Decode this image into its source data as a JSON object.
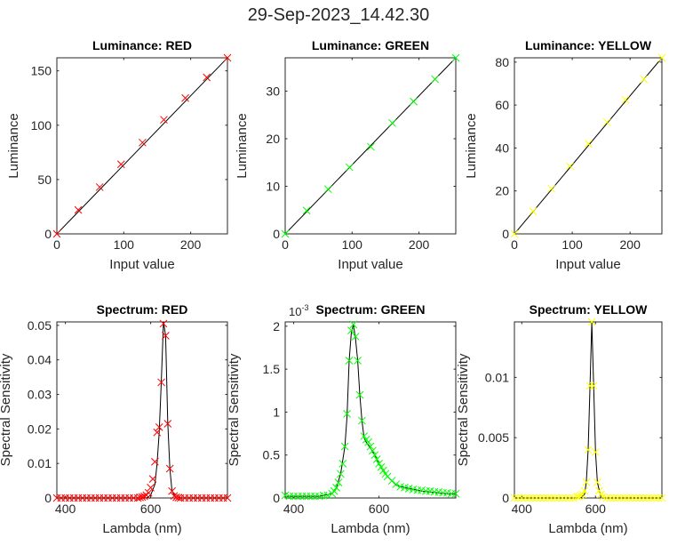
{
  "figure_title": "29-Sep-2023_14.42.30",
  "chart_data": [
    {
      "type": "line",
      "title": "Luminance: RED",
      "xlabel": "Input value",
      "ylabel": "Luminance",
      "xlim": [
        0,
        255
      ],
      "ylim": [
        0,
        162
      ],
      "xticks": [
        0,
        100,
        200
      ],
      "xtick_labels": [
        "0",
        "100",
        "200"
      ],
      "yticks": [
        0,
        50,
        100,
        150
      ],
      "ytick_labels": [
        "0",
        "50",
        "100",
        "150"
      ],
      "color": "#ff0000",
      "line": {
        "x": [
          0,
          255
        ],
        "y": [
          0,
          162
        ]
      },
      "markers": {
        "x": [
          0,
          32,
          64,
          96,
          128,
          160,
          192,
          224,
          255
        ],
        "y": [
          0,
          22,
          43,
          64,
          84,
          105,
          125,
          144,
          162
        ]
      }
    },
    {
      "type": "line",
      "title": "Luminance: GREEN",
      "xlabel": "Input value",
      "ylabel": "Luminance",
      "xlim": [
        0,
        255
      ],
      "ylim": [
        0,
        37
      ],
      "xticks": [
        0,
        100,
        200
      ],
      "xtick_labels": [
        "0",
        "100",
        "200"
      ],
      "yticks": [
        0,
        10,
        20,
        30
      ],
      "ytick_labels": [
        "0",
        "10",
        "20",
        "30"
      ],
      "color": "#00ff00",
      "line": {
        "x": [
          0,
          255
        ],
        "y": [
          0,
          37
        ]
      },
      "markers": {
        "x": [
          0,
          32,
          64,
          96,
          128,
          160,
          192,
          224,
          255
        ],
        "y": [
          0,
          4.9,
          9.4,
          14,
          18.3,
          23.3,
          27.8,
          32.5,
          37
        ]
      }
    },
    {
      "type": "line",
      "title": "Luminance: YELLOW",
      "xlabel": "Input value",
      "ylabel": "Luminance",
      "xlim": [
        0,
        255
      ],
      "ylim": [
        0,
        82
      ],
      "xticks": [
        0,
        100,
        200
      ],
      "xtick_labels": [
        "0",
        "100",
        "200"
      ],
      "yticks": [
        0,
        20,
        40,
        60,
        80
      ],
      "ytick_labels": [
        "0",
        "20",
        "40",
        "60",
        "80"
      ],
      "color": "#ffff00",
      "line": {
        "x": [
          0,
          255
        ],
        "y": [
          0,
          82
        ]
      },
      "markers": {
        "x": [
          0,
          32,
          64,
          96,
          128,
          160,
          192,
          224,
          255
        ],
        "y": [
          0,
          10.5,
          21,
          31.5,
          42,
          52,
          62.5,
          72,
          82
        ]
      }
    },
    {
      "type": "line",
      "title": "Spectrum: RED",
      "xlabel": "Lambda (nm)",
      "ylabel": "Spectral Sensitivity",
      "xlim": [
        380,
        780
      ],
      "ylim": [
        0,
        0.051
      ],
      "xticks": [
        400,
        600
      ],
      "xtick_labels": [
        "400",
        "600"
      ],
      "yticks": [
        0,
        0.01,
        0.02,
        0.03,
        0.04,
        0.05
      ],
      "ytick_labels": [
        "0",
        "0.01",
        "0.02",
        "0.03",
        "0.04",
        "0.05"
      ],
      "color": "#ff0000",
      "line": {
        "x": [
          380,
          590,
          600,
          610,
          615,
          620,
          625,
          630,
          635,
          640,
          645,
          650,
          660,
          780
        ],
        "y": [
          0,
          0,
          0.0008,
          0.004,
          0.01,
          0.019,
          0.034,
          0.051,
          0.047,
          0.022,
          0.0085,
          0.002,
          0,
          0
        ]
      },
      "markers": {
        "x": [
          380,
          390,
          400,
          410,
          420,
          430,
          440,
          450,
          460,
          470,
          480,
          490,
          500,
          510,
          520,
          530,
          540,
          550,
          560,
          570,
          575,
          580,
          585,
          590,
          595,
          600,
          605,
          610,
          615,
          620,
          625,
          630,
          635,
          640,
          645,
          650,
          655,
          660,
          665,
          670,
          680,
          690,
          700,
          710,
          720,
          730,
          740,
          750,
          760,
          770,
          780
        ],
        "y": [
          0,
          0,
          0,
          0,
          0,
          0,
          0,
          0,
          0,
          0,
          0,
          0,
          0,
          0,
          0,
          0,
          0,
          0,
          0,
          0,
          0.0002,
          0.0003,
          0.0005,
          0.0008,
          0.0015,
          0.003,
          0.0055,
          0.0105,
          0.019,
          0.0205,
          0.0335,
          0.0505,
          0.047,
          0.0215,
          0.0085,
          0.002,
          0.0006,
          0.0002,
          0.0001,
          0,
          0,
          0,
          0,
          0,
          0,
          0,
          0,
          0,
          0,
          0,
          0
        ]
      }
    },
    {
      "type": "line",
      "title": "Spectrum: GREEN",
      "xlabel": "Lambda (nm)",
      "ylabel": "Spectral Sensitivity",
      "exponent_label": "10^{-3}",
      "xlim": [
        380,
        780
      ],
      "ylim": [
        0,
        2.05
      ],
      "xticks": [
        400,
        600
      ],
      "xtick_labels": [
        "400",
        "600"
      ],
      "yticks": [
        0,
        0.5,
        1,
        1.5,
        2
      ],
      "ytick_labels": [
        "0",
        "0.5",
        "1",
        "1.5",
        "2"
      ],
      "color": "#00ff00",
      "line": {
        "x": [
          380,
          420,
          460,
          490,
          500,
          510,
          520,
          525,
          530,
          535,
          540,
          545,
          550,
          555,
          560,
          565,
          570,
          580,
          590,
          600,
          620,
          640,
          660,
          680,
          700,
          720,
          740,
          760,
          780
        ],
        "y": [
          0.02,
          0.02,
          0.02,
          0.05,
          0.12,
          0.28,
          0.6,
          0.95,
          1.6,
          1.92,
          2.02,
          1.85,
          1.6,
          1.2,
          0.9,
          0.7,
          0.65,
          0.58,
          0.5,
          0.4,
          0.25,
          0.15,
          0.12,
          0.1,
          0.08,
          0.07,
          0.06,
          0.05,
          0.05
        ]
      },
      "markers": {
        "x": [
          380,
          390,
          400,
          410,
          420,
          430,
          440,
          450,
          460,
          470,
          480,
          490,
          495,
          500,
          505,
          510,
          515,
          520,
          525,
          530,
          535,
          540,
          545,
          550,
          555,
          560,
          565,
          570,
          575,
          580,
          585,
          590,
          595,
          600,
          605,
          610,
          615,
          620,
          630,
          640,
          650,
          660,
          670,
          680,
          690,
          700,
          710,
          720,
          730,
          740,
          750,
          760,
          770,
          780
        ],
        "y": [
          0.03,
          0.02,
          0.02,
          0.02,
          0.02,
          0.02,
          0.02,
          0.02,
          0.02,
          0.03,
          0.03,
          0.05,
          0.08,
          0.12,
          0.18,
          0.28,
          0.4,
          0.6,
          0.98,
          1.6,
          1.95,
          2.02,
          1.88,
          1.6,
          1.2,
          0.9,
          0.72,
          0.68,
          0.65,
          0.6,
          0.55,
          0.5,
          0.45,
          0.4,
          0.36,
          0.32,
          0.28,
          0.25,
          0.2,
          0.16,
          0.13,
          0.12,
          0.11,
          0.1,
          0.09,
          0.09,
          0.08,
          0.08,
          0.07,
          0.07,
          0.06,
          0.06,
          0.05,
          0.05
        ]
      }
    },
    {
      "type": "line",
      "title": "Spectrum: YELLOW",
      "xlabel": "Lambda (nm)",
      "ylabel": "Spectral Sensitivity",
      "xlim": [
        380,
        780
      ],
      "ylim": [
        0,
        0.0146
      ],
      "xticks": [
        400,
        600
      ],
      "xtick_labels": [
        "400",
        "600"
      ],
      "yticks": [
        0,
        0.005,
        0.01
      ],
      "ytick_labels": [
        "0",
        "0.005",
        "0.01"
      ],
      "color": "#ffff00",
      "line": {
        "x": [
          380,
          560,
          570,
          575,
          580,
          585,
          590,
          595,
          600,
          605,
          615,
          780
        ],
        "y": [
          0,
          0,
          0.0003,
          0.0013,
          0.004,
          0.0093,
          0.0146,
          0.0093,
          0.0038,
          0.0013,
          0,
          0
        ]
      },
      "markers": {
        "x": [
          380,
          390,
          400,
          410,
          420,
          430,
          440,
          450,
          460,
          470,
          480,
          490,
          500,
          510,
          520,
          530,
          540,
          550,
          555,
          560,
          565,
          570,
          575,
          580,
          585,
          590,
          595,
          600,
          605,
          610,
          615,
          620,
          630,
          640,
          650,
          660,
          670,
          680,
          690,
          700,
          710,
          720,
          730,
          740,
          750,
          760,
          770,
          780
        ],
        "y": [
          0,
          0,
          0,
          0,
          0,
          0,
          0,
          0,
          0,
          0,
          0,
          0,
          0,
          0,
          0,
          0,
          0,
          0.0001,
          0.0001,
          0.0002,
          0.0003,
          0.0006,
          0.0013,
          0.004,
          0.0093,
          0.0146,
          0.0093,
          0.0038,
          0.0013,
          0.0006,
          0.0003,
          0.0001,
          0,
          0,
          0,
          0,
          0,
          0,
          0,
          0,
          0,
          0,
          0,
          0,
          0,
          0,
          0,
          0
        ]
      }
    }
  ]
}
